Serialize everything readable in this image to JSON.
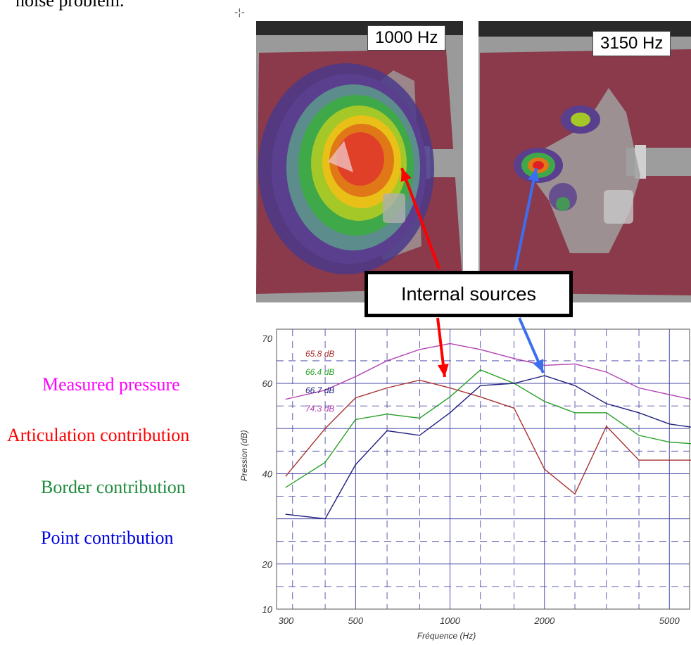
{
  "page": {
    "top_text": "noise problem.",
    "cursor_mark": "-¦-"
  },
  "heatmaps": [
    {
      "label": "1000 Hz"
    },
    {
      "label": "3150 Hz"
    }
  ],
  "callout": {
    "text": "Internal sources"
  },
  "legend": [
    {
      "label": "Measured pressure",
      "color": "#ff00ff"
    },
    {
      "label": "Articulation contribution",
      "color": "#ff0000"
    },
    {
      "label": "Border contribution",
      "color": "#1e8b3c"
    },
    {
      "label": "Point contribution",
      "color": "#0000e0"
    }
  ],
  "chart_data": {
    "type": "line",
    "xscale": "log",
    "xlim": [
      280,
      5800
    ],
    "ylim": [
      10,
      72
    ],
    "x_ticks": [
      300,
      500,
      1000,
      2000,
      5000
    ],
    "x_tick_labels": [
      "300",
      "500",
      "1000",
      "2000",
      "5000"
    ],
    "y_ticks": [
      10,
      20,
      40,
      60,
      70
    ],
    "y_tick_labels": [
      "10",
      "20",
      "40",
      "60",
      "70"
    ],
    "xlabel": "Fréquence (Hz)",
    "ylabel": "Pression (dB)",
    "grid": true,
    "x": [
      300,
      400,
      500,
      630,
      800,
      1000,
      1250,
      1600,
      2000,
      2500,
      3150,
      4000,
      5000,
      6300
    ],
    "series": [
      {
        "name": "74.3 dB",
        "color": "#b040b0",
        "values": [
          56.5,
          58.5,
          61.5,
          65.0,
          67.5,
          68.8,
          67.5,
          65.5,
          64.0,
          64.3,
          62.5,
          59.0,
          57.5,
          56.0
        ]
      },
      {
        "name": "65.8 dB",
        "color": "#a83232",
        "values": [
          39.5,
          50.0,
          56.8,
          59.0,
          60.7,
          59.0,
          57.0,
          54.5,
          41.0,
          35.5,
          50.5,
          43.0,
          43.0,
          43.0
        ]
      },
      {
        "name": "66.4 dB",
        "color": "#2aa02a",
        "values": [
          37.0,
          42.5,
          52.0,
          53.2,
          52.3,
          57.0,
          63.0,
          60.0,
          56.0,
          53.5,
          53.5,
          48.5,
          47.0,
          46.5
        ]
      },
      {
        "name": "66.7 dB",
        "color": "#202080",
        "values": [
          31.0,
          30.0,
          42.0,
          49.5,
          48.5,
          53.5,
          59.5,
          60.0,
          61.7,
          59.5,
          55.5,
          53.5,
          51.0,
          50.0
        ]
      }
    ]
  },
  "arrows": [
    {
      "name": "red-arrow",
      "color": "#ff0000"
    },
    {
      "name": "blue-arrow",
      "color": "#3c6ef0"
    }
  ]
}
